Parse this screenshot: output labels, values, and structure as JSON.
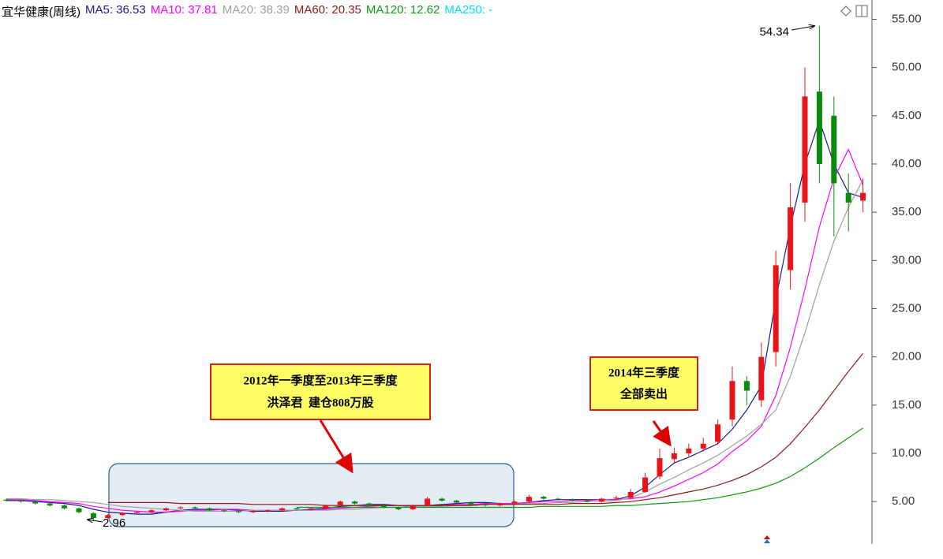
{
  "chart_data": {
    "type": "candlestick",
    "title": "宜华健康(周线)",
    "up_color": "#e8141a",
    "down_color": "#0a8a0a",
    "categories": [
      null,
      null,
      null,
      null,
      null,
      null,
      null,
      null,
      null,
      null,
      null,
      null,
      null,
      null,
      null,
      null,
      null,
      null,
      null,
      null,
      null,
      null,
      null,
      null,
      null,
      null,
      null,
      null,
      null,
      null,
      null,
      null,
      null,
      null,
      null,
      null,
      null,
      null,
      null,
      null,
      null,
      null,
      null,
      null,
      null,
      null,
      null,
      null,
      null,
      null,
      null,
      null,
      null,
      null,
      null,
      null,
      null,
      null,
      null,
      null
    ],
    "open": [
      5.2,
      5.1,
      5.0,
      4.8,
      4.6,
      4.3,
      3.8,
      3.3,
      3.6,
      3.8,
      3.9,
      4.1,
      4.3,
      4.4,
      4.3,
      4.1,
      4.0,
      3.9,
      4.0,
      4.1,
      4.3,
      4.2,
      4.3,
      4.6,
      5.0,
      4.8,
      4.6,
      4.4,
      4.2,
      4.6,
      5.3,
      5.1,
      4.9,
      4.7,
      4.6,
      4.8,
      5.0,
      5.5,
      5.3,
      5.2,
      5.1,
      5.0,
      5.3,
      5.4,
      6.0,
      7.6,
      9.4,
      10.0,
      10.5,
      11.2,
      13.5,
      17.5,
      15.5,
      20.5,
      29.0,
      36.0,
      47.5,
      45.0,
      37.0,
      36.2
    ],
    "high": [
      5.3,
      5.2,
      5.1,
      4.9,
      4.7,
      4.4,
      3.9,
      3.7,
      3.9,
      4.0,
      4.2,
      4.4,
      4.5,
      4.5,
      4.4,
      4.2,
      4.1,
      4.1,
      4.2,
      4.4,
      4.4,
      4.4,
      4.7,
      5.1,
      5.1,
      4.9,
      4.7,
      4.5,
      4.7,
      5.5,
      5.4,
      5.2,
      5.0,
      4.8,
      4.9,
      5.1,
      5.7,
      5.6,
      5.4,
      5.3,
      5.2,
      5.4,
      5.6,
      6.3,
      8.0,
      10.5,
      10.6,
      11.0,
      11.6,
      13.5,
      19.0,
      18.0,
      21.5,
      31.0,
      38.0,
      50.0,
      54.34,
      47.0,
      39.0,
      38.5
    ],
    "low": [
      5.0,
      4.9,
      4.7,
      4.5,
      4.2,
      3.8,
      2.96,
      3.2,
      3.5,
      3.7,
      3.8,
      4.0,
      4.2,
      4.2,
      4.0,
      3.9,
      3.8,
      3.8,
      3.9,
      4.0,
      4.1,
      4.1,
      4.2,
      4.5,
      4.7,
      4.5,
      4.3,
      4.1,
      4.1,
      4.5,
      5.0,
      4.8,
      4.6,
      4.5,
      4.5,
      4.7,
      4.9,
      5.2,
      5.1,
      5.0,
      4.9,
      4.9,
      5.2,
      5.3,
      5.9,
      7.3,
      9.0,
      9.7,
      10.2,
      10.9,
      12.8,
      15.0,
      14.8,
      19.0,
      27.0,
      34.0,
      38.0,
      32.5,
      33.0,
      35.0
    ],
    "close": [
      5.1,
      5.0,
      4.8,
      4.6,
      4.3,
      3.9,
      3.3,
      3.6,
      3.8,
      3.9,
      4.1,
      4.3,
      4.4,
      4.3,
      4.1,
      4.0,
      3.9,
      4.0,
      4.1,
      4.3,
      4.2,
      4.3,
      4.6,
      5.0,
      4.8,
      4.6,
      4.4,
      4.2,
      4.6,
      5.3,
      5.1,
      4.9,
      4.7,
      4.6,
      4.8,
      5.0,
      5.5,
      5.3,
      5.2,
      5.1,
      5.0,
      5.3,
      5.4,
      6.0,
      7.5,
      9.5,
      10.0,
      10.5,
      11.0,
      13.0,
      17.5,
      16.5,
      20.0,
      29.5,
      35.5,
      47.0,
      40.0,
      38.0,
      36.0,
      37.0
    ],
    "series": [
      {
        "name": "MA5: 36.53",
        "color": "#1a1a8c",
        "values": [
          5.1,
          5.1,
          5.0,
          4.9,
          4.8,
          4.6,
          4.2,
          3.9,
          3.8,
          3.7,
          3.7,
          3.9,
          4.1,
          4.2,
          4.2,
          4.2,
          4.1,
          4.0,
          4.0,
          4.0,
          4.1,
          4.2,
          4.3,
          4.5,
          4.6,
          4.7,
          4.7,
          4.6,
          4.5,
          4.6,
          4.7,
          4.8,
          4.9,
          4.9,
          4.8,
          4.8,
          4.9,
          5.1,
          5.2,
          5.2,
          5.2,
          5.2,
          5.2,
          5.6,
          6.5,
          7.8,
          9.0,
          9.6,
          10.3,
          11.0,
          12.5,
          14.5,
          17.0,
          26.0,
          33.5,
          40.0,
          44.5,
          40.0,
          37.0,
          36.53
        ]
      },
      {
        "name": "MA10: 37.81",
        "color": "#ff00ff",
        "values": [
          5.2,
          5.2,
          5.1,
          5.0,
          4.9,
          4.8,
          4.5,
          4.3,
          4.1,
          4.0,
          3.9,
          3.9,
          4.0,
          4.1,
          4.1,
          4.2,
          4.2,
          4.1,
          4.1,
          4.1,
          4.1,
          4.1,
          4.2,
          4.3,
          4.4,
          4.5,
          4.6,
          4.6,
          4.6,
          4.6,
          4.6,
          4.7,
          4.7,
          4.8,
          4.8,
          4.8,
          4.9,
          5.0,
          5.0,
          5.1,
          5.1,
          5.2,
          5.2,
          5.3,
          5.5,
          6.0,
          6.6,
          7.3,
          8.0,
          8.9,
          10.2,
          11.3,
          12.8,
          16.0,
          21.0,
          27.0,
          33.5,
          38.5,
          41.5,
          37.81
        ]
      },
      {
        "name": "MA20: 38.39",
        "color": "#a0a0a0",
        "values": [
          5.3,
          5.3,
          5.2,
          5.2,
          5.1,
          5.0,
          4.9,
          4.7,
          4.5,
          4.4,
          4.3,
          4.2,
          4.1,
          4.0,
          4.0,
          4.0,
          4.0,
          4.1,
          4.1,
          4.1,
          4.1,
          4.1,
          4.1,
          4.2,
          4.2,
          4.3,
          4.4,
          4.4,
          4.5,
          4.5,
          4.5,
          4.6,
          4.6,
          4.7,
          4.7,
          4.7,
          4.8,
          4.8,
          4.9,
          4.9,
          5.0,
          5.0,
          5.1,
          5.4,
          6.0,
          6.8,
          7.5,
          8.3,
          9.0,
          9.8,
          10.8,
          11.8,
          13.0,
          14.5,
          18.0,
          22.5,
          27.5,
          32.0,
          35.5,
          38.39
        ]
      },
      {
        "name": "MA60: 20.35",
        "color": "#8b1a1a",
        "values": [
          null,
          null,
          null,
          null,
          null,
          null,
          null,
          4.9,
          4.9,
          4.9,
          4.9,
          4.9,
          4.8,
          4.8,
          4.8,
          4.8,
          4.8,
          4.7,
          4.7,
          4.7,
          4.7,
          4.7,
          4.6,
          4.6,
          4.6,
          4.6,
          4.6,
          4.6,
          4.6,
          4.6,
          4.6,
          4.6,
          4.6,
          4.7,
          4.7,
          4.7,
          4.7,
          4.7,
          4.7,
          4.8,
          4.8,
          4.8,
          4.9,
          5.0,
          5.2,
          5.4,
          5.7,
          6.0,
          6.3,
          6.7,
          7.2,
          7.8,
          8.6,
          9.6,
          11.0,
          12.7,
          14.5,
          16.5,
          18.5,
          20.35
        ]
      },
      {
        "name": "MA120: 12.62",
        "color": "#109a10",
        "values": [
          null,
          null,
          null,
          null,
          null,
          null,
          null,
          null,
          null,
          null,
          null,
          null,
          null,
          null,
          null,
          null,
          null,
          null,
          null,
          null,
          4.4,
          4.4,
          4.4,
          4.4,
          4.4,
          4.4,
          4.4,
          4.4,
          4.4,
          4.4,
          4.4,
          4.4,
          4.4,
          4.4,
          4.4,
          4.4,
          4.4,
          4.5,
          4.5,
          4.5,
          4.5,
          4.5,
          4.6,
          4.6,
          4.7,
          4.8,
          4.9,
          5.0,
          5.2,
          5.4,
          5.7,
          6.0,
          6.4,
          6.9,
          7.6,
          8.5,
          9.5,
          10.6,
          11.6,
          12.62
        ]
      },
      {
        "name": "MA250: -",
        "color": "#00e0f0"
      }
    ],
    "ylim": [
      0.6,
      57
    ],
    "yticks": [
      {
        "value": 5,
        "label": "5.00"
      },
      {
        "value": 10,
        "label": "10.00"
      },
      {
        "value": 15,
        "label": "15.00"
      },
      {
        "value": 20,
        "label": "20.00"
      },
      {
        "value": 25,
        "label": "25.00"
      },
      {
        "value": 30,
        "label": "30.00"
      },
      {
        "value": 35,
        "label": "35.00"
      },
      {
        "value": 40,
        "label": "40.00"
      },
      {
        "value": 45,
        "label": "45.00"
      },
      {
        "value": 50,
        "label": "50.00"
      },
      {
        "value": 55,
        "label": "55.00"
      }
    ],
    "annotations": [
      {
        "lines": [
          "2012年一季度至2013年三季度",
          "洪泽君  建仓808万股"
        ]
      },
      {
        "lines": [
          "2014年三季度",
          "全部卖出"
        ]
      }
    ]
  }
}
